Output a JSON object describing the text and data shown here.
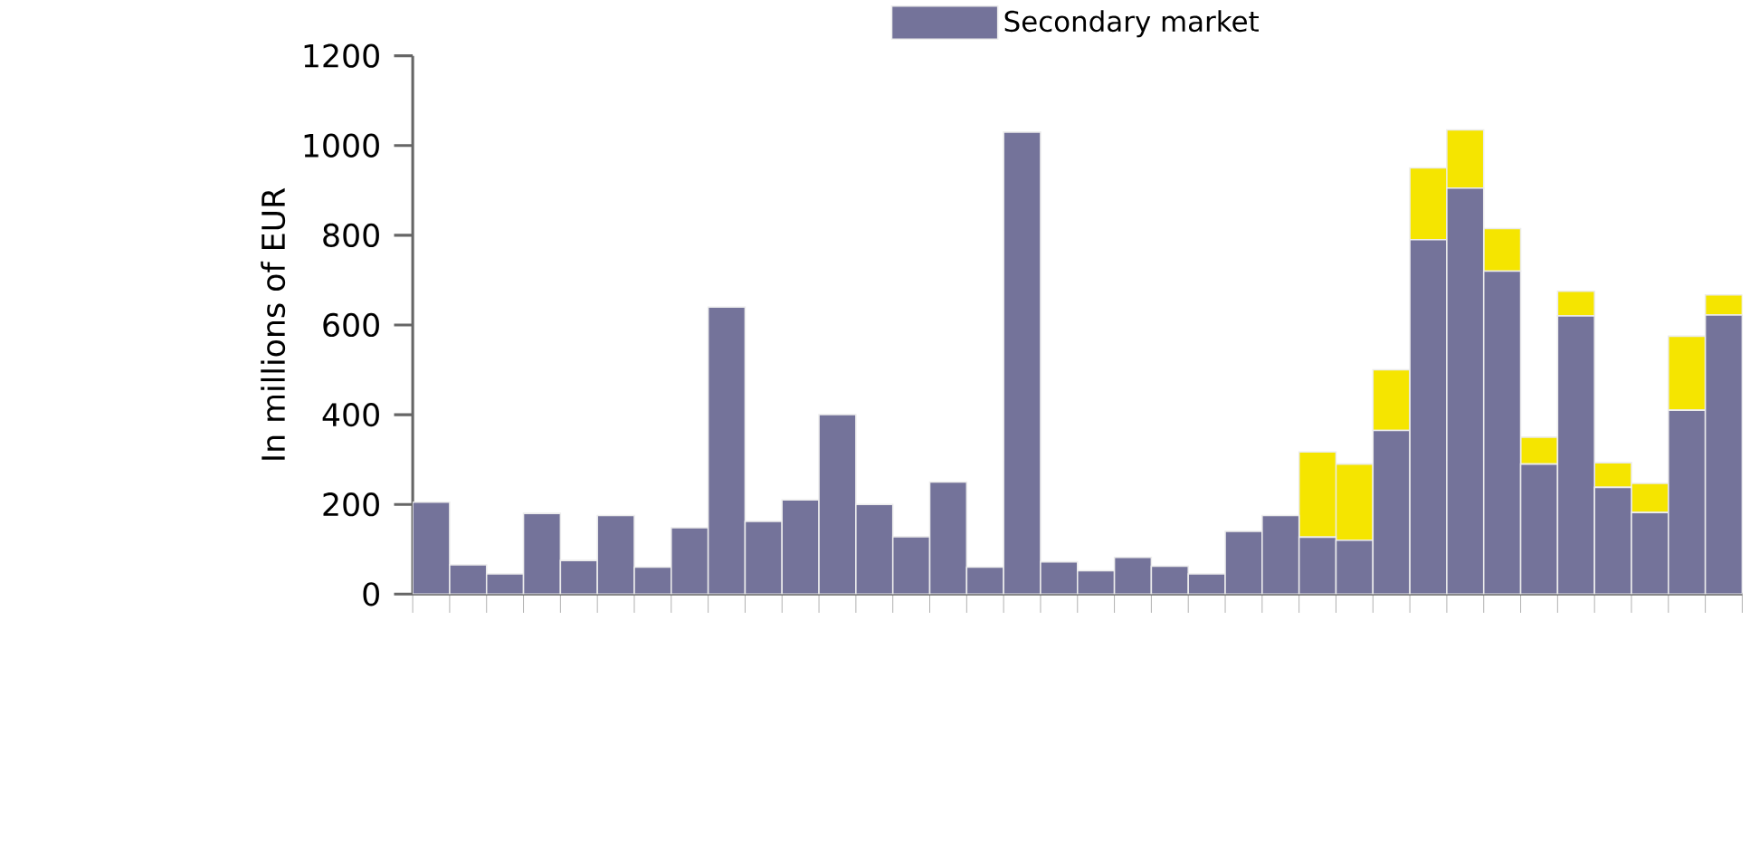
{
  "chart_data": {
    "type": "bar",
    "stacked": true,
    "ylabel": "In millions of EUR",
    "categories": [
      null,
      null,
      null,
      null,
      null,
      null,
      null,
      null,
      null,
      null,
      null,
      null,
      null,
      null,
      null,
      null,
      null,
      null,
      null,
      null,
      null,
      null,
      null,
      null,
      null,
      null,
      null,
      null,
      null,
      null,
      null,
      null,
      null,
      null,
      null,
      null
    ],
    "series": [
      {
        "name": "Secondary market",
        "color": "#74739a",
        "values": [
          205,
          65,
          45,
          180,
          75,
          175,
          60,
          148,
          640,
          162,
          210,
          400,
          200,
          128,
          250,
          60,
          1030,
          72,
          52,
          82,
          62,
          45,
          140,
          175,
          127,
          120,
          365,
          790,
          905,
          720,
          290,
          620,
          238,
          182,
          410,
          622
        ]
      },
      {
        "color": "#f5e500",
        "values": [
          0,
          0,
          0,
          0,
          0,
          0,
          0,
          0,
          0,
          0,
          0,
          0,
          0,
          0,
          0,
          0,
          0,
          0,
          0,
          0,
          0,
          0,
          0,
          0,
          190,
          170,
          135,
          160,
          130,
          95,
          60,
          55,
          55,
          65,
          165,
          45
        ]
      }
    ],
    "ylim": [
      0,
      1200
    ],
    "yticks": [
      0,
      200,
      400,
      600,
      800,
      1000,
      1200
    ],
    "legend": "top"
  }
}
